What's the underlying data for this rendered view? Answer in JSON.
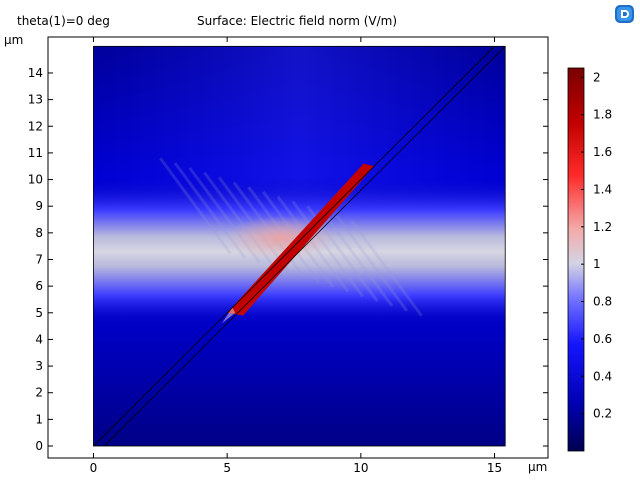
{
  "header": {
    "parameter_label": "theta(1)=0 deg",
    "plot_title": "Surface: Electric field norm (V/m)",
    "logo_icon": "comsol-logo-icon"
  },
  "chart_data": {
    "type": "heatmap",
    "title": "Surface: Electric field norm (V/m)",
    "xlabel": "μm",
    "ylabel": "μm",
    "xlim": [
      -1.7,
      17.0
    ],
    "ylim": [
      -0.45,
      15.35
    ],
    "x_ticks": [
      0,
      5,
      10,
      15
    ],
    "y_ticks": [
      0,
      1,
      2,
      3,
      4,
      5,
      6,
      7,
      8,
      9,
      10,
      11,
      12,
      13,
      14
    ],
    "domain": {
      "x": [
        0,
        15.4
      ],
      "y": [
        0,
        15
      ]
    },
    "colorbar": {
      "range": [
        0.0,
        2.05
      ],
      "ticks": [
        0.2,
        0.4,
        0.6,
        0.8,
        1,
        1.2,
        1.4,
        1.6,
        1.8,
        2
      ]
    },
    "colormap": [
      "#00004d",
      "#0000b3",
      "#1a1aff",
      "#8080ff",
      "#ccccdd",
      "#f29999",
      "#ff2020",
      "#bb0000",
      "#800000"
    ],
    "features": {
      "band_center_y": 7.3,
      "band_half_height": 1.4,
      "interface_start": [
        0.0,
        0.0
      ],
      "interface_end": [
        15.4,
        15.0
      ]
    }
  }
}
